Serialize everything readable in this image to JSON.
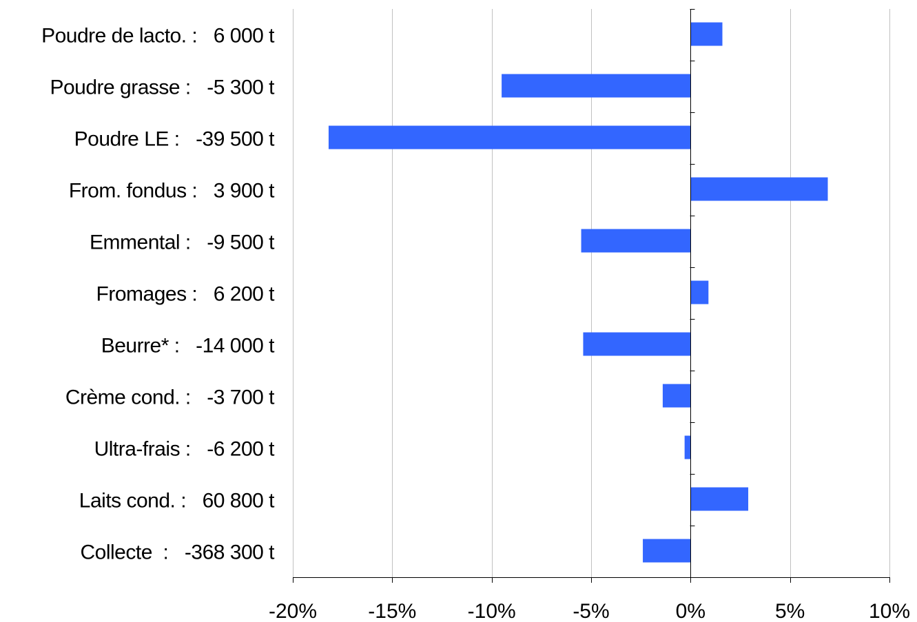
{
  "chart_data": {
    "type": "bar",
    "orientation": "horizontal",
    "categories": [
      "Poudre de lacto. :   6 000 t",
      "Poudre grasse :   -5 300 t",
      "Poudre LE :   -39 500 t",
      "From. fondus :   3 900 t",
      "Emmental :   -9 500 t",
      "Fromages :   6 200 t",
      "Beurre* :   -14 000 t",
      "Crème cond. :   -3 700 t",
      "Ultra-frais :   -6 200 t",
      "Laits cond. :   60 800 t",
      "Collecte  :   -368 300 t"
    ],
    "values": [
      1.6,
      -9.5,
      -18.2,
      6.9,
      -5.5,
      0.9,
      -5.4,
      -1.4,
      -0.3,
      2.9,
      -2.4
    ],
    "xlim": [
      -20,
      10
    ],
    "xticks": [
      "-20%",
      "-15%",
      "-10%",
      "-5%",
      "0%",
      "5%",
      "10%"
    ],
    "xtick_values": [
      -20,
      -15,
      -10,
      -5,
      0,
      5,
      10
    ],
    "bar_color": "#3366ff",
    "grid": "vertical",
    "grid_color": "#c0c0c0",
    "title": "",
    "xlabel": "",
    "ylabel": ""
  }
}
